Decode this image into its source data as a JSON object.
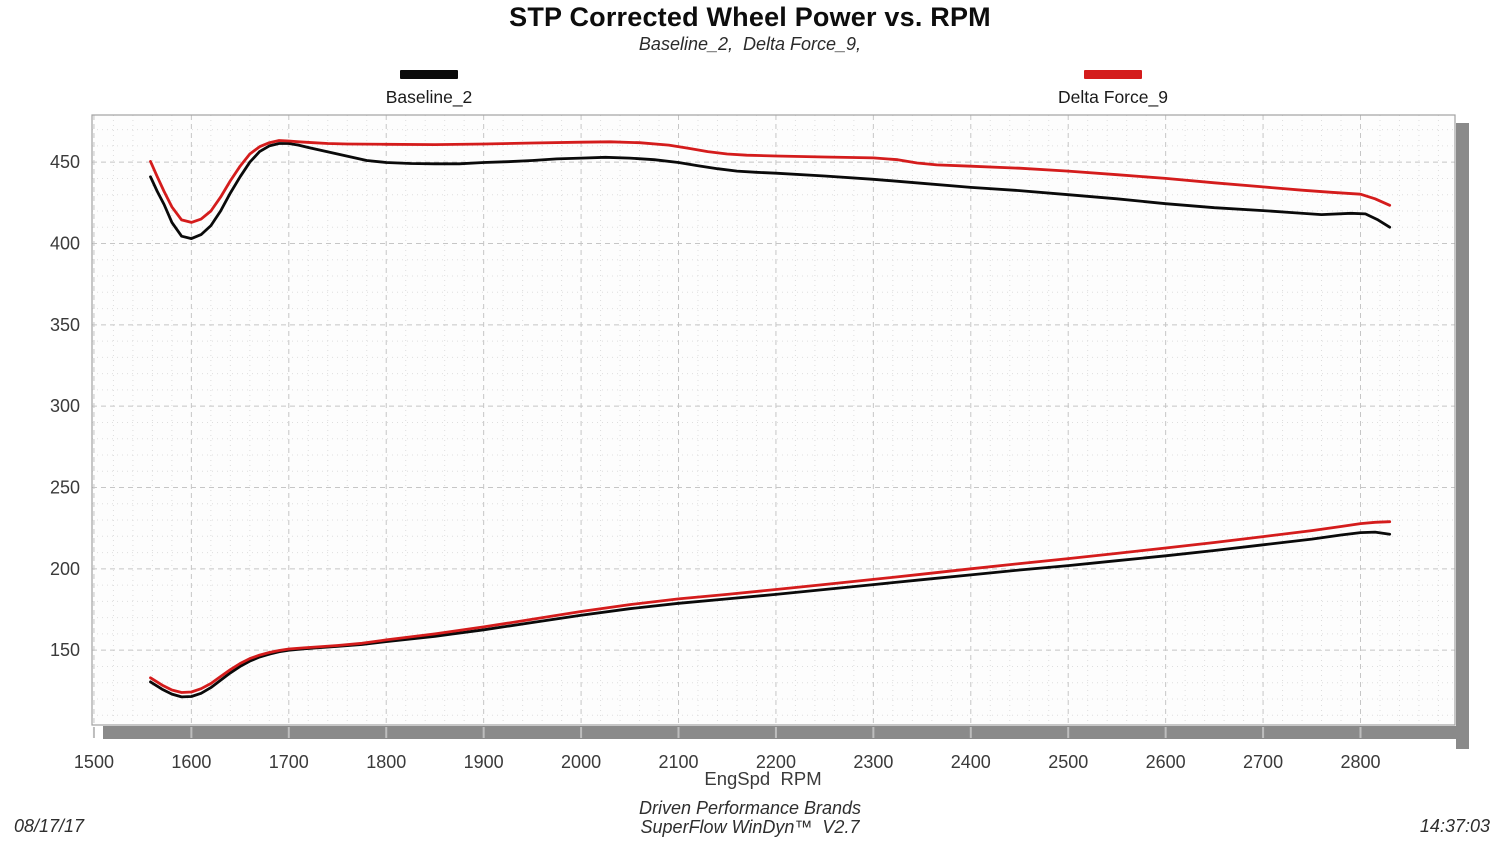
{
  "header": {
    "title": "STP Corrected Wheel Power vs. RPM",
    "subtitle": "Baseline_2,  Delta Force_9,"
  },
  "footer": {
    "date": "08/17/17",
    "brand_line1": "Driven Performance Brands",
    "brand_line2": "SuperFlow WinDyn™  V2.7",
    "time": "14:37:03"
  },
  "chart_data": {
    "type": "line",
    "title": "STP Corrected Wheel Power vs. RPM",
    "subtitle": "Baseline_2, Delta Force_9,",
    "xlabel": "EngSpd  RPM",
    "ylabel": "",
    "xlim": [
      1498,
      2897
    ],
    "ylim": [
      104,
      479
    ],
    "x_ticks": [
      1500,
      1600,
      1700,
      1800,
      1900,
      2000,
      2100,
      2200,
      2300,
      2400,
      2500,
      2600,
      2700,
      2800
    ],
    "y_ticks": [
      150,
      200,
      250,
      300,
      350,
      400,
      450
    ],
    "x_minor_step": 20,
    "y_minor_step": 10,
    "grid": true,
    "legend_position": "top",
    "legend": [
      {
        "name": "Baseline_2",
        "color": "#0a0a0a"
      },
      {
        "name": "Delta Force_9",
        "color": "#d41c1c"
      }
    ],
    "series": [
      {
        "name": "Baseline_2 upper curve",
        "color": "#0a0a0a",
        "points": [
          [
            1558,
            441
          ],
          [
            1565,
            432
          ],
          [
            1572,
            424
          ],
          [
            1580,
            413
          ],
          [
            1590,
            404.5
          ],
          [
            1600,
            403
          ],
          [
            1610,
            405.5
          ],
          [
            1620,
            411
          ],
          [
            1630,
            420
          ],
          [
            1640,
            431
          ],
          [
            1650,
            441
          ],
          [
            1660,
            450
          ],
          [
            1670,
            456.5
          ],
          [
            1680,
            460
          ],
          [
            1690,
            461.5
          ],
          [
            1700,
            461.5
          ],
          [
            1710,
            460.5
          ],
          [
            1720,
            459
          ],
          [
            1735,
            457
          ],
          [
            1750,
            455
          ],
          [
            1765,
            453
          ],
          [
            1780,
            451
          ],
          [
            1800,
            449.8
          ],
          [
            1825,
            449.2
          ],
          [
            1850,
            449
          ],
          [
            1875,
            449
          ],
          [
            1900,
            449.8
          ],
          [
            1925,
            450.3
          ],
          [
            1950,
            451
          ],
          [
            1975,
            452
          ],
          [
            2000,
            452.5
          ],
          [
            2025,
            453
          ],
          [
            2050,
            452.5
          ],
          [
            2075,
            451.5
          ],
          [
            2100,
            449.8
          ],
          [
            2120,
            447.8
          ],
          [
            2140,
            446
          ],
          [
            2160,
            444.5
          ],
          [
            2180,
            443.8
          ],
          [
            2200,
            443.2
          ],
          [
            2250,
            441.5
          ],
          [
            2300,
            439.5
          ],
          [
            2350,
            437
          ],
          [
            2400,
            434.5
          ],
          [
            2450,
            432.5
          ],
          [
            2500,
            430
          ],
          [
            2550,
            427.5
          ],
          [
            2600,
            424.5
          ],
          [
            2650,
            422
          ],
          [
            2700,
            420.2
          ],
          [
            2730,
            419
          ],
          [
            2760,
            417.8
          ],
          [
            2790,
            418.6
          ],
          [
            2805,
            418.2
          ],
          [
            2818,
            414.5
          ],
          [
            2830,
            410
          ]
        ]
      },
      {
        "name": "Delta Force_9 upper curve",
        "color": "#d41c1c",
        "points": [
          [
            1558,
            450.5
          ],
          [
            1565,
            441
          ],
          [
            1572,
            432
          ],
          [
            1580,
            422.5
          ],
          [
            1590,
            414.5
          ],
          [
            1600,
            413
          ],
          [
            1610,
            415
          ],
          [
            1620,
            420
          ],
          [
            1630,
            428.5
          ],
          [
            1640,
            438.5
          ],
          [
            1650,
            447.5
          ],
          [
            1660,
            455
          ],
          [
            1670,
            459.5
          ],
          [
            1680,
            462
          ],
          [
            1690,
            463.3
          ],
          [
            1700,
            463
          ],
          [
            1710,
            462.5
          ],
          [
            1725,
            462
          ],
          [
            1740,
            461.5
          ],
          [
            1760,
            461.2
          ],
          [
            1800,
            461
          ],
          [
            1850,
            460.8
          ],
          [
            1900,
            461.2
          ],
          [
            1950,
            461.8
          ],
          [
            2000,
            462.3
          ],
          [
            2030,
            462.5
          ],
          [
            2060,
            462
          ],
          [
            2090,
            460.5
          ],
          [
            2110,
            458.5
          ],
          [
            2130,
            456.5
          ],
          [
            2150,
            455
          ],
          [
            2170,
            454.3
          ],
          [
            2200,
            453.8
          ],
          [
            2250,
            453.2
          ],
          [
            2300,
            452.6
          ],
          [
            2325,
            451.5
          ],
          [
            2345,
            449.5
          ],
          [
            2365,
            448.3
          ],
          [
            2400,
            447.5
          ],
          [
            2450,
            446.3
          ],
          [
            2500,
            444.5
          ],
          [
            2550,
            442.3
          ],
          [
            2600,
            440
          ],
          [
            2650,
            437.3
          ],
          [
            2700,
            434.8
          ],
          [
            2740,
            432.8
          ],
          [
            2770,
            431.5
          ],
          [
            2800,
            430.3
          ],
          [
            2815,
            427.5
          ],
          [
            2830,
            423.5
          ]
        ]
      },
      {
        "name": "Baseline_2 lower curve",
        "color": "#0a0a0a",
        "points": [
          [
            1558,
            130.5
          ],
          [
            1570,
            126
          ],
          [
            1580,
            123
          ],
          [
            1590,
            121.3
          ],
          [
            1600,
            121.5
          ],
          [
            1610,
            123.5
          ],
          [
            1620,
            127
          ],
          [
            1630,
            131.5
          ],
          [
            1640,
            136
          ],
          [
            1650,
            140
          ],
          [
            1660,
            143.3
          ],
          [
            1670,
            145.8
          ],
          [
            1680,
            147.6
          ],
          [
            1690,
            149
          ],
          [
            1700,
            150
          ],
          [
            1715,
            150.8
          ],
          [
            1730,
            151.5
          ],
          [
            1750,
            152.3
          ],
          [
            1775,
            153.5
          ],
          [
            1800,
            155.3
          ],
          [
            1850,
            158.5
          ],
          [
            1900,
            162.5
          ],
          [
            1950,
            167
          ],
          [
            2000,
            171.5
          ],
          [
            2050,
            175.5
          ],
          [
            2100,
            178.8
          ],
          [
            2150,
            181.5
          ],
          [
            2200,
            184.3
          ],
          [
            2250,
            187.3
          ],
          [
            2300,
            190.3
          ],
          [
            2350,
            193.3
          ],
          [
            2400,
            196.3
          ],
          [
            2450,
            199.3
          ],
          [
            2500,
            202
          ],
          [
            2550,
            205
          ],
          [
            2600,
            208
          ],
          [
            2650,
            211.3
          ],
          [
            2700,
            214.8
          ],
          [
            2750,
            218.3
          ],
          [
            2780,
            220.8
          ],
          [
            2800,
            222.3
          ],
          [
            2815,
            222.6
          ],
          [
            2830,
            221.3
          ]
        ]
      },
      {
        "name": "Delta Force_9 lower curve",
        "color": "#d41c1c",
        "points": [
          [
            1558,
            133
          ],
          [
            1570,
            128.5
          ],
          [
            1580,
            125.5
          ],
          [
            1590,
            124
          ],
          [
            1600,
            124.3
          ],
          [
            1610,
            126.3
          ],
          [
            1620,
            129.5
          ],
          [
            1630,
            133.8
          ],
          [
            1640,
            138
          ],
          [
            1650,
            141.8
          ],
          [
            1660,
            144.8
          ],
          [
            1670,
            147
          ],
          [
            1680,
            148.6
          ],
          [
            1690,
            149.8
          ],
          [
            1700,
            150.7
          ],
          [
            1715,
            151.4
          ],
          [
            1730,
            152
          ],
          [
            1750,
            152.9
          ],
          [
            1775,
            154.2
          ],
          [
            1800,
            156.3
          ],
          [
            1850,
            160
          ],
          [
            1900,
            164.3
          ],
          [
            1950,
            169
          ],
          [
            2000,
            173.8
          ],
          [
            2050,
            178
          ],
          [
            2100,
            181.5
          ],
          [
            2150,
            184.3
          ],
          [
            2200,
            187.3
          ],
          [
            2250,
            190.4
          ],
          [
            2300,
            193.5
          ],
          [
            2350,
            196.7
          ],
          [
            2400,
            200
          ],
          [
            2450,
            203.2
          ],
          [
            2500,
            206.3
          ],
          [
            2550,
            209.5
          ],
          [
            2600,
            212.8
          ],
          [
            2650,
            216.2
          ],
          [
            2700,
            219.8
          ],
          [
            2750,
            223.5
          ],
          [
            2780,
            226
          ],
          [
            2800,
            227.8
          ],
          [
            2815,
            228.6
          ],
          [
            2830,
            229
          ]
        ]
      }
    ],
    "colors": {
      "grid_major": "#c6c6c6",
      "grid_minor": "#dedede",
      "frame": "#a2a2a2",
      "plot_bg": "#fdfdfd",
      "shadow_bar": "#8a8a8a",
      "shadow_tick": "#bdbdbd",
      "tick_label": "#3a3a3a"
    }
  }
}
